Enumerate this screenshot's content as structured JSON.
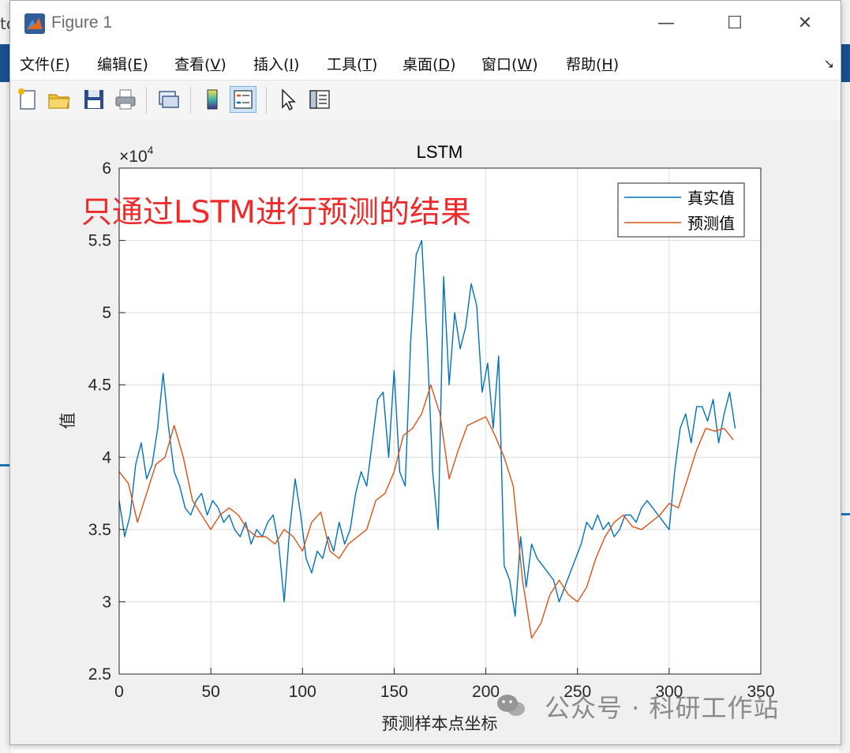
{
  "window": {
    "title": "Figure 1",
    "minimize_symbol": "—",
    "maximize_symbol": "☐",
    "close_symbol": "✕"
  },
  "menu": {
    "items": [
      {
        "label": "文件(",
        "key": "F",
        "end": ")"
      },
      {
        "label": "编辑(",
        "key": "E",
        "end": ")"
      },
      {
        "label": "查看(",
        "key": "V",
        "end": ")"
      },
      {
        "label": "插入(",
        "key": "I",
        "end": ")"
      },
      {
        "label": "工具(",
        "key": "T",
        "end": ")"
      },
      {
        "label": "桌面(",
        "key": "D",
        "end": ")"
      },
      {
        "label": "窗口(",
        "key": "W",
        "end": ")"
      },
      {
        "label": "帮助(",
        "key": "H",
        "end": ")"
      }
    ],
    "corner_symbol": "↘"
  },
  "toolbar": {
    "icons": [
      "new-figure-icon",
      "open-icon",
      "save-icon",
      "print-icon",
      "link-plot-icon",
      "colorbar-icon",
      "legend-icon",
      "pointer-icon",
      "property-inspector-icon"
    ]
  },
  "chart_data": {
    "type": "line",
    "title": "LSTM",
    "xlabel": "预测样本点坐标",
    "ylabel": "值",
    "y_exponent_label": "×10",
    "y_exponent_power": "4",
    "xlim": [
      0,
      350
    ],
    "ylim": [
      2.5,
      6
    ],
    "xticks": [
      0,
      50,
      100,
      150,
      200,
      250,
      300,
      350
    ],
    "yticks": [
      2.5,
      3,
      3.5,
      4,
      4.5,
      5,
      5.5,
      6
    ],
    "ytick_labels": [
      "2.5",
      "3",
      "3.5",
      "4",
      "4.5",
      "5",
      "5.5",
      "6"
    ],
    "grid": true,
    "legend_position": "top-right",
    "annotation": "只通过LSTM进行预测的结果",
    "annotation_color": "#ee2a2a",
    "series": [
      {
        "name": "真实值",
        "color": "#0072bd",
        "x": [
          0,
          3,
          6,
          9,
          12,
          15,
          18,
          21,
          24,
          27,
          30,
          33,
          36,
          39,
          42,
          45,
          48,
          51,
          54,
          57,
          60,
          63,
          66,
          69,
          72,
          75,
          78,
          81,
          84,
          87,
          90,
          93,
          96,
          99,
          102,
          105,
          108,
          111,
          114,
          117,
          120,
          123,
          126,
          129,
          132,
          135,
          138,
          141,
          144,
          147,
          150,
          153,
          156,
          159,
          162,
          165,
          168,
          171,
          174,
          177,
          180,
          183,
          186,
          189,
          192,
          195,
          198,
          201,
          204,
          207,
          210,
          213,
          216,
          219,
          222,
          225,
          228,
          231,
          234,
          237,
          240,
          243,
          246,
          249,
          252,
          255,
          258,
          261,
          264,
          267,
          270,
          273,
          276,
          279,
          282,
          285,
          288,
          291,
          294,
          297,
          300,
          303,
          306,
          309,
          312,
          315,
          318,
          321,
          324,
          327,
          330,
          333,
          336
        ],
        "values": [
          3.7,
          3.45,
          3.6,
          3.95,
          4.1,
          3.85,
          3.95,
          4.2,
          4.58,
          4.2,
          3.9,
          3.8,
          3.65,
          3.6,
          3.7,
          3.75,
          3.6,
          3.7,
          3.65,
          3.55,
          3.6,
          3.5,
          3.45,
          3.55,
          3.4,
          3.5,
          3.45,
          3.55,
          3.6,
          3.4,
          3.0,
          3.5,
          3.85,
          3.6,
          3.3,
          3.2,
          3.35,
          3.3,
          3.45,
          3.35,
          3.55,
          3.4,
          3.5,
          3.75,
          3.9,
          3.8,
          4.1,
          4.4,
          4.45,
          4.0,
          4.6,
          3.9,
          3.8,
          4.8,
          5.4,
          5.5,
          4.8,
          3.9,
          3.5,
          5.25,
          4.5,
          5.0,
          4.75,
          4.9,
          5.2,
          5.05,
          4.45,
          4.65,
          4.2,
          4.7,
          3.25,
          3.15,
          2.9,
          3.45,
          3.1,
          3.4,
          3.3,
          3.25,
          3.2,
          3.15,
          3.0,
          3.1,
          3.2,
          3.3,
          3.4,
          3.55,
          3.5,
          3.6,
          3.5,
          3.55,
          3.45,
          3.5,
          3.6,
          3.6,
          3.55,
          3.65,
          3.7,
          3.65,
          3.6,
          3.55,
          3.5,
          3.9,
          4.2,
          4.3,
          4.1,
          4.35,
          4.35,
          4.25,
          4.4,
          4.1,
          4.3,
          4.45,
          4.2
        ]
      },
      {
        "name": "预测值",
        "color": "#d95319",
        "x": [
          0,
          5,
          10,
          15,
          20,
          25,
          30,
          35,
          40,
          45,
          50,
          55,
          60,
          65,
          70,
          75,
          80,
          85,
          90,
          95,
          100,
          105,
          110,
          115,
          120,
          125,
          130,
          135,
          140,
          145,
          150,
          155,
          160,
          165,
          170,
          175,
          180,
          185,
          190,
          195,
          200,
          205,
          210,
          215,
          220,
          225,
          230,
          235,
          240,
          245,
          250,
          255,
          260,
          265,
          270,
          275,
          280,
          285,
          290,
          295,
          300,
          305,
          310,
          315,
          320,
          325,
          330,
          335
        ],
        "values": [
          3.9,
          3.82,
          3.55,
          3.75,
          3.95,
          4.0,
          4.22,
          4.0,
          3.7,
          3.6,
          3.5,
          3.6,
          3.65,
          3.6,
          3.5,
          3.45,
          3.45,
          3.4,
          3.5,
          3.45,
          3.35,
          3.55,
          3.62,
          3.35,
          3.3,
          3.4,
          3.45,
          3.5,
          3.7,
          3.75,
          3.9,
          4.15,
          4.2,
          4.3,
          4.5,
          4.3,
          3.85,
          4.05,
          4.22,
          4.25,
          4.28,
          4.15,
          4.0,
          3.8,
          3.15,
          2.75,
          2.85,
          3.05,
          3.15,
          3.05,
          3.0,
          3.1,
          3.3,
          3.45,
          3.55,
          3.6,
          3.52,
          3.5,
          3.55,
          3.6,
          3.68,
          3.65,
          3.85,
          4.05,
          4.2,
          4.18,
          4.2,
          4.12
        ]
      }
    ]
  },
  "watermark": {
    "text": "公众号 · 科研工作站"
  },
  "background": {
    "fragment_text": "to"
  }
}
